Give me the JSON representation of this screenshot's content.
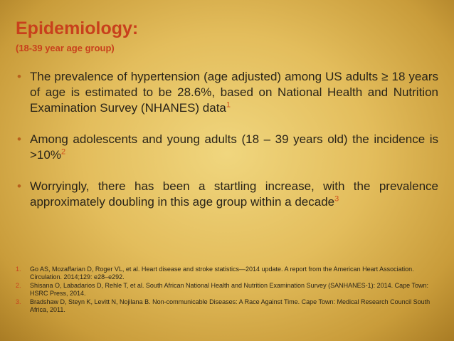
{
  "title": "Epidemiology:",
  "subtitle": "(18-39 year age group)",
  "bullets": [
    {
      "text": "The prevalence of hypertension (age adjusted) among US adults ≥ 18 years of age is estimated to be 28.6%, based on National Health and Nutrition Examination Survey (NHANES) data",
      "sup": "1"
    },
    {
      "text": "Among adolescents and young adults (18 – 39 years old) the incidence is >10%",
      "sup": "2"
    },
    {
      "text": "Worryingly, there has been a startling increase, with the prevalence approximately doubling in this age group within a decade",
      "sup": "3"
    }
  ],
  "references": [
    {
      "number": "1.",
      "text": "Go AS, Mozaffarian D, Roger VL, et al. Heart disease and stroke statistics—2014 update. A report from the American Heart Association. Circulation. 2014;129: e28–e292."
    },
    {
      "number": "2.",
      "text": "Shisana O, Labadarios D, Rehle T, et al. South African National Health and Nutrition Examination Survey (SANHANES-1): 2014. Cape Town: HSRC Press, 2014."
    },
    {
      "number": "3.",
      "text": "Bradshaw D, Steyn K, Levitt N, Nojilana B. Non-communicable Diseases: A Race Against Time. Cape Town: Medical Research Council South Africa, 2011."
    }
  ]
}
